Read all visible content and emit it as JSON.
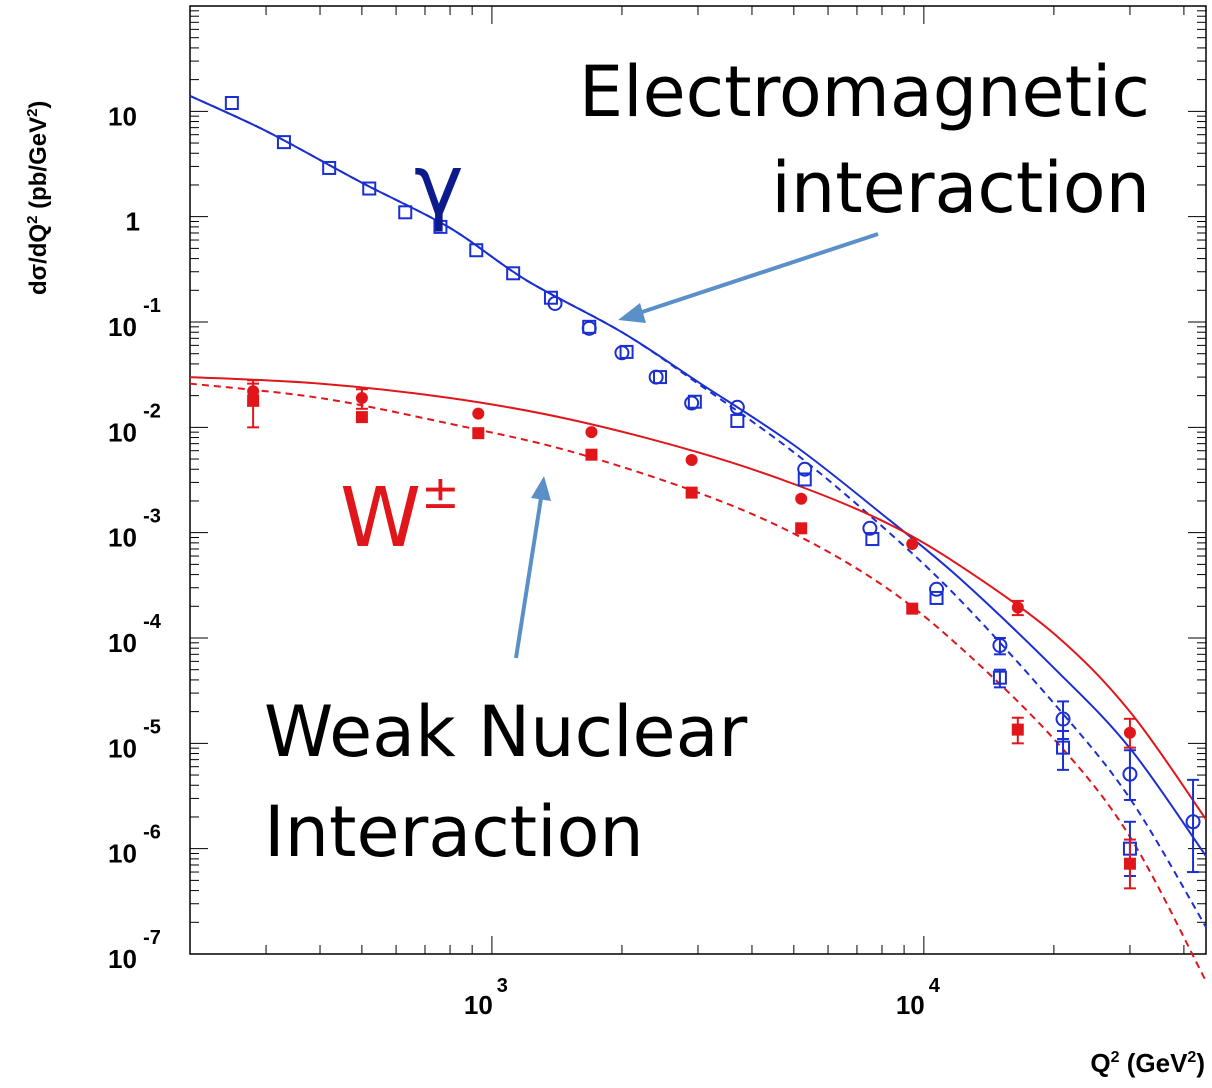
{
  "chart_data": {
    "type": "scatter",
    "xlabel": "Q",
    "xlabel_sup": "2",
    "xlabel_unit": " (GeV",
    "xlabel_unit_sup": "2",
    "xlabel_close": ")",
    "ylabel": "dσ/dQ",
    "ylabel_sup": "2",
    "ylabel_unit": " (pb/GeV",
    "ylabel_unit_sup": "2",
    "ylabel_close": ")",
    "x_scale": "log",
    "y_scale": "log",
    "xlim": [
      200,
      45000
    ],
    "ylim": [
      1e-07,
      100
    ],
    "x_ticks": [
      {
        "value": 1000,
        "base": "10",
        "exp": "3"
      },
      {
        "value": 10000,
        "base": "10",
        "exp": "4"
      }
    ],
    "y_ticks": [
      {
        "value": 10,
        "base": "10",
        "exp": ""
      },
      {
        "value": 1,
        "base": "1",
        "exp": ""
      },
      {
        "value": 0.1,
        "base": "10",
        "exp": "-1"
      },
      {
        "value": 0.01,
        "base": "10",
        "exp": "-2"
      },
      {
        "value": 0.001,
        "base": "10",
        "exp": "-3"
      },
      {
        "value": 0.0001,
        "base": "10",
        "exp": "-4"
      },
      {
        "value": 1e-05,
        "base": "10",
        "exp": "-5"
      },
      {
        "value": 1e-06,
        "base": "10",
        "exp": "-6"
      },
      {
        "value": 1e-07,
        "base": "10",
        "exp": "-7"
      }
    ],
    "series": [
      {
        "color": "#1a2fd1",
        "marker": "open-circle",
        "points": [
          [
            1400,
            0.15
          ],
          [
            1680,
            0.087
          ],
          [
            2000,
            0.051
          ],
          [
            2400,
            0.03
          ],
          [
            2900,
            0.017
          ],
          [
            3700,
            0.0155
          ],
          [
            5300,
            0.004
          ],
          [
            7500,
            0.0011
          ],
          [
            10700,
            0.00029
          ],
          [
            15000,
            8.5e-05
          ],
          [
            21000,
            1.7e-05
          ],
          [
            30000,
            5.1e-06
          ],
          [
            42000,
            1.8e-06
          ]
        ],
        "errors": [
          [
            0,
            0
          ],
          [
            0,
            0
          ],
          [
            0,
            0
          ],
          [
            0,
            0
          ],
          [
            0,
            0
          ],
          [
            0,
            0
          ],
          [
            0,
            0
          ],
          [
            0,
            0
          ],
          [
            0,
            0
          ],
          [
            1.5e-05,
            1.5e-05
          ],
          [
            6e-06,
            8e-06
          ],
          [
            2.2e-06,
            3.5e-06
          ],
          [
            1.2e-06,
            2.7e-06
          ]
        ]
      },
      {
        "color": "#1a2fd1",
        "marker": "open-square",
        "points": [
          [
            250,
            12
          ],
          [
            330,
            5.1
          ],
          [
            420,
            2.9
          ],
          [
            520,
            1.85
          ],
          [
            630,
            1.1
          ],
          [
            760,
            0.8
          ],
          [
            920,
            0.48
          ],
          [
            1120,
            0.29
          ],
          [
            1370,
            0.17
          ],
          [
            1680,
            0.09
          ],
          [
            2050,
            0.052
          ],
          [
            2450,
            0.03
          ],
          [
            2950,
            0.0175
          ],
          [
            3700,
            0.0115
          ],
          [
            5300,
            0.0032
          ],
          [
            7600,
            0.00087
          ],
          [
            10700,
            0.00024
          ],
          [
            15000,
            4.2e-05
          ],
          [
            21000,
            9.1e-06
          ],
          [
            30000,
            1e-06
          ]
        ],
        "errors": [
          [
            0,
            0
          ],
          [
            0,
            0
          ],
          [
            0,
            0
          ],
          [
            0,
            0
          ],
          [
            0,
            0
          ],
          [
            0,
            0
          ],
          [
            0,
            0
          ],
          [
            0,
            0
          ],
          [
            0,
            0
          ],
          [
            0,
            0
          ],
          [
            0,
            0
          ],
          [
            0,
            0
          ],
          [
            0,
            0
          ],
          [
            0,
            0
          ],
          [
            0,
            0
          ],
          [
            0,
            0
          ],
          [
            0,
            0
          ],
          [
            8e-06,
            8e-06
          ],
          [
            3.5e-06,
            4e-06
          ],
          [
            4.5e-07,
            8e-07
          ]
        ]
      },
      {
        "color": "#e0161a",
        "marker": "filled-circle",
        "points": [
          [
            280,
            0.022
          ],
          [
            500,
            0.019
          ],
          [
            930,
            0.0135
          ],
          [
            1700,
            0.009
          ],
          [
            2900,
            0.0049
          ],
          [
            5200,
            0.0021
          ],
          [
            9400,
            0.00078
          ],
          [
            16500,
            0.000195
          ],
          [
            30000,
            1.26e-05
          ]
        ],
        "errors": [
          [
            0.006,
            0.006
          ],
          [
            0.004,
            0.004
          ],
          [
            0,
            0
          ],
          [
            0,
            0
          ],
          [
            0,
            0
          ],
          [
            0,
            0
          ],
          [
            0,
            0
          ],
          [
            3e-05,
            3e-05
          ],
          [
            3.5e-06,
            4.5e-06
          ]
        ]
      },
      {
        "color": "#e0161a",
        "marker": "filled-square",
        "points": [
          [
            280,
            0.018
          ],
          [
            500,
            0.0125
          ],
          [
            930,
            0.0088
          ],
          [
            1700,
            0.0055
          ],
          [
            2900,
            0.0024
          ],
          [
            5200,
            0.0011
          ],
          [
            9400,
            0.00019
          ],
          [
            16500,
            1.35e-05
          ],
          [
            30000,
            7.2e-07
          ]
        ],
        "errors": [
          [
            0.008,
            0.008
          ],
          [
            0,
            0
          ],
          [
            0,
            0
          ],
          [
            0,
            0
          ],
          [
            0,
            0
          ],
          [
            0,
            0
          ],
          [
            0,
            0
          ],
          [
            3.5e-06,
            4e-06
          ],
          [
            3e-07,
            5e-07
          ]
        ]
      }
    ],
    "curves": [
      {
        "color": "#1a2fd1",
        "style": "solid",
        "points": [
          [
            200,
            14
          ],
          [
            300,
            6.5
          ],
          [
            500,
            2.1
          ],
          [
            800,
            0.78
          ],
          [
            1200,
            0.25
          ],
          [
            2000,
            0.08
          ],
          [
            3000,
            0.027
          ],
          [
            5000,
            0.0068
          ],
          [
            8000,
            0.0015
          ],
          [
            12000,
            0.00038
          ],
          [
            20000,
            5.2e-05
          ],
          [
            30000,
            9e-06
          ],
          [
            45000,
            8.5e-07
          ]
        ]
      },
      {
        "color": "#1a2fd1",
        "style": "dashed",
        "points": [
          [
            200,
            14
          ],
          [
            300,
            6.5
          ],
          [
            500,
            2.1
          ],
          [
            800,
            0.78
          ],
          [
            1200,
            0.25
          ],
          [
            2000,
            0.08
          ],
          [
            3000,
            0.026
          ],
          [
            5000,
            0.0058
          ],
          [
            8000,
            0.00115
          ],
          [
            12000,
            0.00024
          ],
          [
            20000,
            2.4e-05
          ],
          [
            30000,
            3e-06
          ],
          [
            45000,
            1.8e-07
          ]
        ]
      },
      {
        "color": "#e0161a",
        "style": "solid",
        "points": [
          [
            200,
            0.03
          ],
          [
            400,
            0.026
          ],
          [
            800,
            0.019
          ],
          [
            1500,
            0.012
          ],
          [
            3000,
            0.0058
          ],
          [
            5000,
            0.0029
          ],
          [
            8000,
            0.0013
          ],
          [
            12000,
            0.0005
          ],
          [
            20000,
            0.00011
          ],
          [
            30000,
            2e-05
          ],
          [
            45000,
            1.9e-06
          ]
        ]
      },
      {
        "color": "#e0161a",
        "style": "dashed",
        "points": [
          [
            200,
            0.026
          ],
          [
            400,
            0.019
          ],
          [
            800,
            0.0108
          ],
          [
            1500,
            0.006
          ],
          [
            3000,
            0.0024
          ],
          [
            5000,
            0.00098
          ],
          [
            8000,
            0.00032
          ],
          [
            12000,
            8.5e-05
          ],
          [
            20000,
            1.1e-05
          ],
          [
            30000,
            1.3e-06
          ],
          [
            45000,
            5.5e-08
          ]
        ]
      }
    ]
  },
  "annotations": {
    "gamma": {
      "text": "γ",
      "color": "#0d1a8c"
    },
    "w": {
      "text": "W",
      "sup": "±",
      "color": "#e0161a"
    },
    "em_line1": "Electromagnetic",
    "em_line2": "interaction",
    "weak_line1": "Weak Nuclear",
    "weak_line2": "Interaction",
    "arrow_color": "#5b8fc8"
  }
}
